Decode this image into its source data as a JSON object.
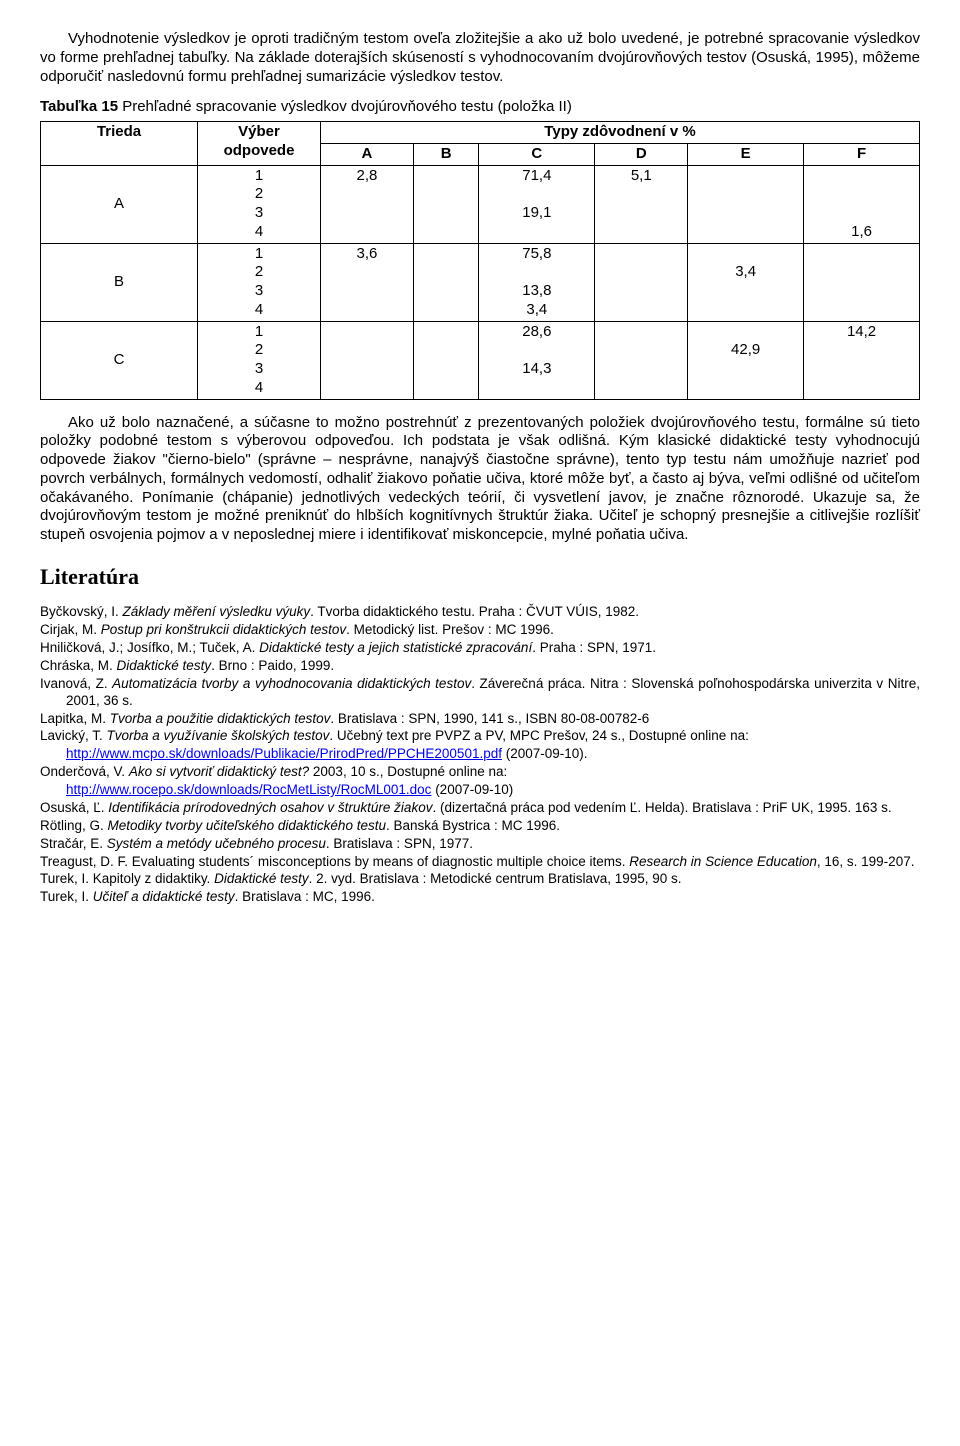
{
  "para1": "Vyhodnotenie výsledkov je oproti tradičným testom oveľa zložitejšie a ako už bolo uvedené, je potrebné spracovanie výsledkov vo forme prehľadnej tabuľky. Na základe doterajších skúseností s vyhodnocovaním dvojúrovňových testov (Osuská, 1995), môžeme odporučiť nasledovnú formu prehľadnej sumarizácie výsledkov testov.",
  "tableCaptionBold": "Tabuľka 15",
  "tableCaptionRest": " Prehľadné spracovanie výsledkov dvojúrovňového testu (položka II)",
  "table": {
    "h_trieda": "Trieda",
    "h_vyber": "Výber odpovede",
    "h_typy": "Typy zdôvodnení v %",
    "cols": [
      "A",
      "B",
      "C",
      "D",
      "E",
      "F"
    ],
    "rows": [
      {
        "trieda": "A",
        "opts": "1\n2\n3\n4",
        "A": "2,8",
        "B": "",
        "C": "71,4\n\n19,1",
        "D": "5,1",
        "E": "",
        "F": "\n\n\n1,6"
      },
      {
        "trieda": "B",
        "opts": "1\n2\n3\n4",
        "A": "3,6",
        "B": "",
        "C": "75,8\n\n13,8\n3,4",
        "D": "",
        "E": "\n3,4",
        "F": ""
      },
      {
        "trieda": "C",
        "opts": "1\n2\n3\n4",
        "A": "",
        "B": "",
        "C": "28,6\n\n14,3",
        "D": "",
        "E": "\n42,9",
        "F": "14,2"
      }
    ]
  },
  "para2": "Ako už bolo naznačené, a súčasne to možno postrehnúť z prezentovaných položiek dvojúrovňového testu, formálne sú tieto položky podobné testom s výberovou odpoveďou. Ich podstata je však odlišná. Kým klasické didaktické testy vyhodnocujú odpovede žiakov \"čierno-bielo\" (správne – nesprávne, nanajvýš čiastočne správne), tento typ testu nám umožňuje nazrieť pod povrch verbálnych, formálnych vedomostí, odhaliť žiakovo poňatie učiva, ktoré môže byť, a často aj býva, veľmi odlišné od učiteľom očakávaného. Ponímanie (chápanie) jednotlivých vedeckých teórií, či vysvetlení javov, je značne rôznorodé. Ukazuje sa, že dvojúrovňovým testom je možné preniknúť do hlbších kognitívnych štruktúr žiaka. Učiteľ je schopný presnejšie a citlivejšie rozlíšiť stupeň osvojenia pojmov a v neposlednej miere i identifikovať miskoncepcie, mylné poňatia učiva.",
  "litHeading": "Literatúra",
  "refs": [
    {
      "pre": "Byčkovský, I. ",
      "it": "Základy měření výsledku výuky",
      "post": ". Tvorba didaktického testu. Praha : ČVUT VÚIS, 1982."
    },
    {
      "pre": "Cirjak, M. ",
      "it": "Postup pri konštrukcii didaktických testov",
      "post": ". Metodický list. Prešov : MC 1996."
    },
    {
      "pre": "Hniličková, J.; Josífko, M.; Tuček, A. ",
      "it": "Didaktické testy a jejich statistické zpracování",
      "post": ". Praha : SPN, 1971."
    },
    {
      "pre": "Chráska, M. ",
      "it": "Didaktické testy",
      "post": ". Brno : Paido, 1999."
    },
    {
      "pre": "Ivanová, Z. ",
      "it": "Automatizácia tvorby a vyhodnocovania didaktických testov",
      "post": ". Záverečná práca. Nitra : Slovenská poľnohospodárska univerzita v Nitre, 2001, 36 s."
    },
    {
      "pre": "Lapitka, M. ",
      "it": "Tvorba a použitie didaktických testov",
      "post": ". Bratislava : SPN, 1990, 141 s., ISBN 80-08-00782-6"
    },
    {
      "pre": "Lavický, T. ",
      "it": "Tvorba a využívanie školských testov",
      "post": ". Učebný text pre PVPZ a PV, MPC Prešov, 24 s., Dostupné online na:",
      "link": "http://www.mcpo.sk/downloads/Publikacie/PrirodPred/PPCHE200501.pdf",
      "linkPost": " (2007-09-10)."
    },
    {
      "pre": "Onderčová, V. ",
      "it": "Ako si vytvoriť didaktický test?",
      "post": " 2003, 10 s., Dostupné online na:",
      "link": "http://www.rocepo.sk/downloads/RocMetListy/RocML001.doc",
      "linkPost": " (2007-09-10)"
    },
    {
      "pre": "Osuská, Ľ. ",
      "it": "Identifikácia prírodovedných osahov v štruktúre žiakov",
      "post": ". (dizertačná práca pod vedením Ľ. Helda). Bratislava : PriF UK, 1995. 163 s."
    },
    {
      "pre": "Rötling, G. ",
      "it": "Metodiky tvorby učiteľského didaktického testu",
      "post": ". Banská Bystrica : MC 1996."
    },
    {
      "pre": "Stračár, E. ",
      "it": "Systém a metódy učebného procesu",
      "post": ". Bratislava : SPN, 1977."
    },
    {
      "pre": "Treagust, D. F. Evaluating students´ misconceptions by means of diagnostic multiple choice items. ",
      "it": "Research in Science Education",
      "post": ", 16, s. 199-207."
    },
    {
      "pre": "Turek, I. Kapitoly z didaktiky. ",
      "it": "Didaktické testy",
      "post": ". 2. vyd. Bratislava : Metodické centrum Bratislava, 1995, 90 s."
    },
    {
      "pre": "Turek, I. ",
      "it": "Učiteľ a didaktické testy",
      "post": ". Bratislava : MC, 1996."
    }
  ]
}
